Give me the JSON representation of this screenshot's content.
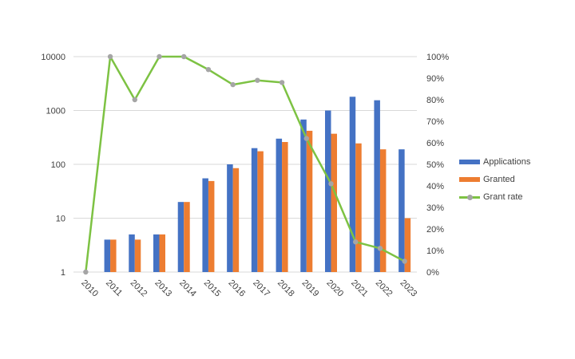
{
  "chart_data": {
    "type": "bar",
    "title": "",
    "xlabel": "",
    "ylabel": "",
    "categories": [
      "2010",
      "2011",
      "2012",
      "2013",
      "2014",
      "2015",
      "2016",
      "2017",
      "2018",
      "2019",
      "2020",
      "2021",
      "2022",
      "2023"
    ],
    "series": [
      {
        "name": "Applications",
        "type": "bar",
        "axis": "left",
        "color": "#4472c4",
        "values": [
          0,
          4,
          5,
          5,
          20,
          55,
          100,
          200,
          300,
          680,
          1000,
          1800,
          1550,
          190
        ]
      },
      {
        "name": "Granted",
        "type": "bar",
        "axis": "left",
        "color": "#ed7d31",
        "values": [
          0,
          4,
          4,
          5,
          20,
          49,
          85,
          175,
          260,
          420,
          370,
          245,
          190,
          10
        ]
      },
      {
        "name": "Grant rate",
        "type": "line",
        "axis": "right",
        "color": "#7dc243",
        "marker_color": "#a5a5a5",
        "values": [
          0,
          100,
          80,
          100,
          100,
          94,
          87,
          89,
          88,
          62,
          41,
          14,
          11,
          5
        ]
      }
    ],
    "y_left": {
      "scale": "log",
      "ticks": [
        "1",
        "10",
        "100",
        "1000",
        "10000"
      ],
      "range": [
        1,
        10000
      ]
    },
    "y_right": {
      "scale": "linear",
      "ticks": [
        "0%",
        "10%",
        "20%",
        "30%",
        "40%",
        "50%",
        "60%",
        "70%",
        "80%",
        "90%",
        "100%"
      ],
      "range": [
        0,
        100
      ]
    },
    "grid": true,
    "legend_position": "right"
  },
  "legend": {
    "items": [
      {
        "label": "Applications",
        "color": "#4472c4"
      },
      {
        "label": "Granted",
        "color": "#ed7d31"
      },
      {
        "label": "Grant rate",
        "color": "#7dc243"
      }
    ]
  }
}
